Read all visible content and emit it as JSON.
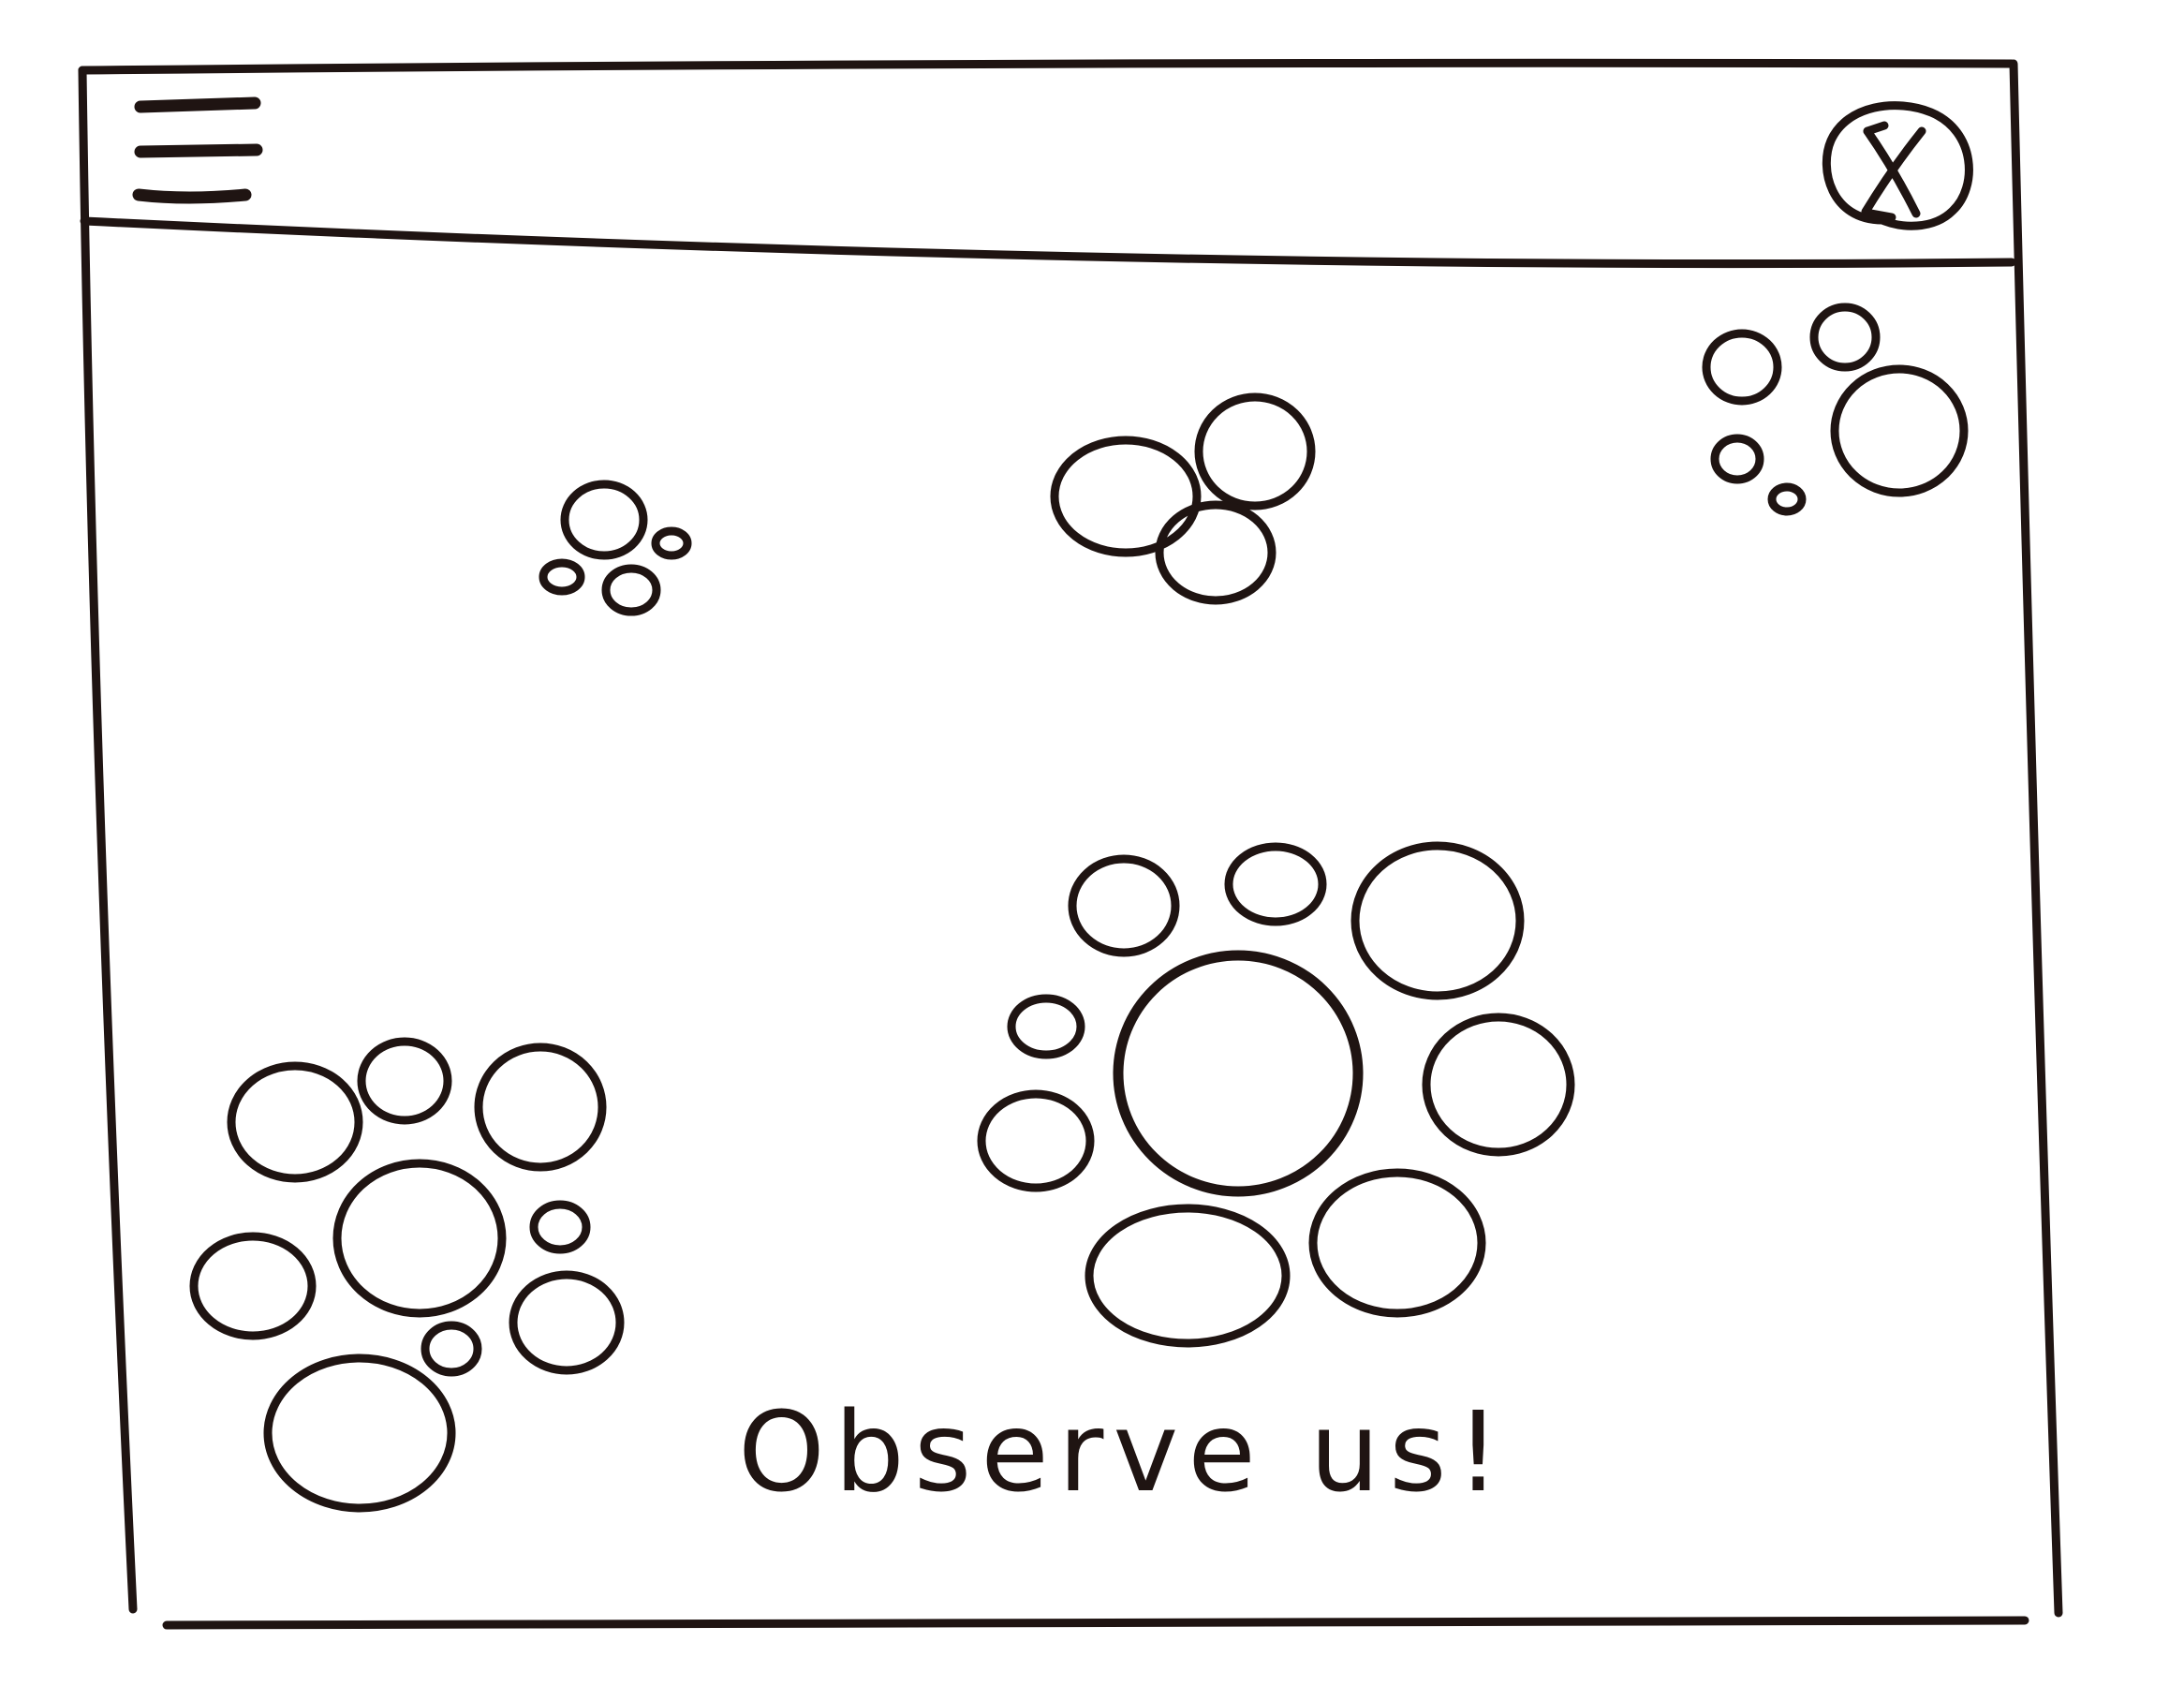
{
  "window": {
    "menu_icon": "hamburger-menu-icon",
    "close_icon": "close-circle-icon",
    "close_glyph": "X"
  },
  "content": {
    "caption": "Observe us!"
  },
  "colors": {
    "ink": "#1f1412",
    "paper": "#ffffff"
  }
}
